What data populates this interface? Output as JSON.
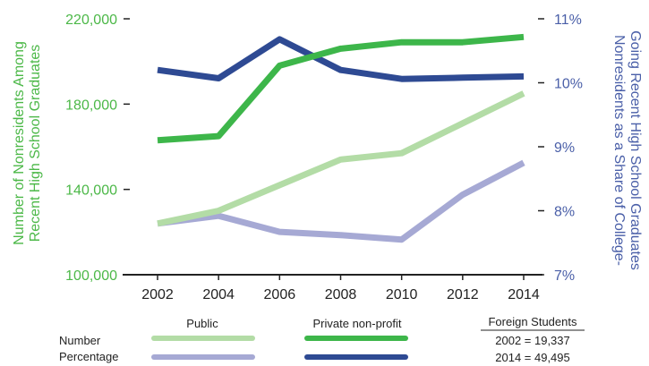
{
  "chart_data": {
    "type": "line",
    "x": [
      2002,
      2004,
      2006,
      2008,
      2010,
      2012,
      2014
    ],
    "y_left": {
      "label_lines": [
        "Number of Nonresidents Among",
        "Recent High School Graduates"
      ],
      "ticks": [
        "100,000",
        "140,000",
        "180,000",
        "220,000"
      ],
      "tick_values": [
        100000,
        140000,
        180000,
        220000
      ],
      "range": [
        100000,
        220000
      ],
      "color": "#4CB848"
    },
    "y_right": {
      "label_lines": [
        "Nonresidents as a Share of College-",
        "Going Recent High School Graduates"
      ],
      "ticks": [
        "7%",
        "8%",
        "9%",
        "10%",
        "11%"
      ],
      "tick_values": [
        7,
        8,
        9,
        10,
        11
      ],
      "range": [
        7,
        11
      ],
      "color": "#4A5FA8"
    },
    "x_ticks": [
      "2002",
      "2004",
      "2006",
      "2008",
      "2010",
      "2012",
      "2014"
    ],
    "series": [
      {
        "key": "public_number",
        "axis": "left",
        "color": "#B3DCA6",
        "values": [
          124000,
          130000,
          142000,
          154000,
          157000,
          171000,
          185000
        ]
      },
      {
        "key": "private_number",
        "axis": "left",
        "color": "#3DB64A",
        "values": [
          163000,
          165000,
          198000,
          206000,
          209000,
          209000,
          211500
        ]
      },
      {
        "key": "public_percentage",
        "axis": "right",
        "color": "#A6A9D4",
        "values": [
          7.8,
          7.92,
          7.67,
          7.62,
          7.55,
          8.25,
          8.75
        ]
      },
      {
        "key": "private_percentage",
        "axis": "right",
        "color": "#2E4A93",
        "values": [
          10.2,
          10.07,
          10.68,
          10.2,
          10.06,
          10.08,
          10.1
        ]
      }
    ],
    "legend": {
      "col_public": "Public",
      "col_private": "Private non-profit",
      "row_number": "Number",
      "row_percentage": "Percentage"
    },
    "foreign_students": {
      "title": "Foreign Students",
      "line1": "2002 = 19,337",
      "line2": "2014 = 49,495"
    }
  }
}
